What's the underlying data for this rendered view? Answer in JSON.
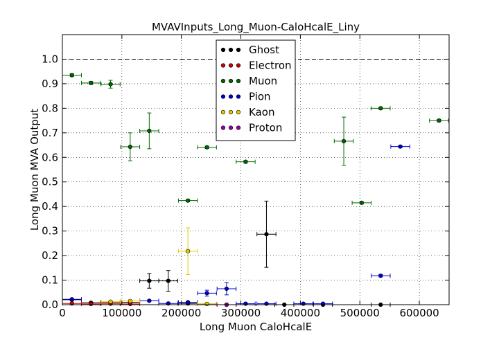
{
  "chart_data": {
    "type": "scatter",
    "title": "MVAVInputs_Long_Muon-CaloHcalE_Liny",
    "xlabel": "Long Muon CaloHcalE",
    "ylabel": "Long Muon MVA Output",
    "xlim": [
      0,
      650000
    ],
    "ylim": [
      0,
      1.1
    ],
    "x_ticks": [
      0,
      100000,
      200000,
      300000,
      400000,
      500000,
      600000
    ],
    "x_tick_labels": [
      "0",
      "100000",
      "200000",
      "300000",
      "400000",
      "500000",
      "600000"
    ],
    "y_ticks": [
      0.0,
      0.1,
      0.2,
      0.3,
      0.4,
      0.5,
      0.6,
      0.7,
      0.8,
      0.9,
      1.0
    ],
    "y_tick_labels": [
      "0.0",
      "0.1",
      "0.2",
      "0.3",
      "0.4",
      "0.5",
      "0.6",
      "0.7",
      "0.8",
      "0.9",
      "1.0"
    ],
    "reference_line_y": 1.0,
    "grid": true,
    "legend_position": "top-center",
    "series": [
      {
        "name": "Ghost",
        "color": "#000000",
        "points": [
          {
            "x": 16000,
            "y": 0.02,
            "xerr": 16000,
            "yerr": 0.003
          },
          {
            "x": 48000,
            "y": 0.008,
            "xerr": 16000,
            "yerr": 0.002
          },
          {
            "x": 81000,
            "y": 0.01,
            "xerr": 16000,
            "yerr": 0.003
          },
          {
            "x": 114000,
            "y": 0.01,
            "xerr": 16000,
            "yerr": 0.003
          },
          {
            "x": 146000,
            "y": 0.097,
            "xerr": 16000,
            "yerr": 0.03
          },
          {
            "x": 178000,
            "y": 0.097,
            "xerr": 16000,
            "yerr": 0.042
          },
          {
            "x": 211000,
            "y": 0.005,
            "xerr": 16000,
            "yerr": 0.002
          },
          {
            "x": 243000,
            "y": 0.003,
            "xerr": 16000,
            "yerr": 0.002
          },
          {
            "x": 343000,
            "y": 0.287,
            "xerr": 16000,
            "yerr": 0.135
          },
          {
            "x": 373000,
            "y": 0.0,
            "xerr": 16000,
            "yerr": 0.0
          },
          {
            "x": 438000,
            "y": 0.0,
            "xerr": 16000,
            "yerr": 0.0
          },
          {
            "x": 535000,
            "y": 0.0,
            "xerr": 16000,
            "yerr": 0.0
          }
        ]
      },
      {
        "name": "Electron",
        "color": "#cc0000",
        "points": [
          {
            "x": 16000,
            "y": 0.005,
            "xerr": 16000,
            "yerr": 0.002
          },
          {
            "x": 48000,
            "y": 0.003,
            "xerr": 16000,
            "yerr": 0.001
          },
          {
            "x": 81000,
            "y": 0.004,
            "xerr": 16000,
            "yerr": 0.001
          },
          {
            "x": 114000,
            "y": 0.003,
            "xerr": 16000,
            "yerr": 0.001
          },
          {
            "x": 276000,
            "y": 0.0,
            "xerr": 16000,
            "yerr": 0.0
          }
        ]
      },
      {
        "name": "Muon",
        "color": "#006600",
        "points": [
          {
            "x": 16000,
            "y": 0.935,
            "xerr": 16000,
            "yerr": 0.006
          },
          {
            "x": 48000,
            "y": 0.903,
            "xerr": 16000,
            "yerr": 0.006
          },
          {
            "x": 81000,
            "y": 0.898,
            "xerr": 16000,
            "yerr": 0.016
          },
          {
            "x": 114000,
            "y": 0.643,
            "xerr": 16000,
            "yerr": 0.057
          },
          {
            "x": 146000,
            "y": 0.708,
            "xerr": 16000,
            "yerr": 0.073
          },
          {
            "x": 211000,
            "y": 0.424,
            "xerr": 16000,
            "yerr": 0.005
          },
          {
            "x": 243000,
            "y": 0.641,
            "xerr": 16000,
            "yerr": 0.005
          },
          {
            "x": 308000,
            "y": 0.582,
            "xerr": 16000,
            "yerr": 0.005
          },
          {
            "x": 473000,
            "y": 0.666,
            "xerr": 16000,
            "yerr": 0.098
          },
          {
            "x": 503000,
            "y": 0.415,
            "xerr": 16000,
            "yerr": 0.005
          },
          {
            "x": 535000,
            "y": 0.8,
            "xerr": 16000,
            "yerr": 0.005
          },
          {
            "x": 633000,
            "y": 0.75,
            "xerr": 16000,
            "yerr": 0.005
          }
        ]
      },
      {
        "name": "Pion",
        "color": "#0000cc",
        "points": [
          {
            "x": 16000,
            "y": 0.022,
            "xerr": 16000,
            "yerr": 0.003
          },
          {
            "x": 146000,
            "y": 0.016,
            "xerr": 16000,
            "yerr": 0.003
          },
          {
            "x": 178000,
            "y": 0.005,
            "xerr": 16000,
            "yerr": 0.002
          },
          {
            "x": 211000,
            "y": 0.01,
            "xerr": 16000,
            "yerr": 0.003
          },
          {
            "x": 243000,
            "y": 0.047,
            "xerr": 16000,
            "yerr": 0.012
          },
          {
            "x": 276000,
            "y": 0.065,
            "xerr": 16000,
            "yerr": 0.025
          },
          {
            "x": 308000,
            "y": 0.004,
            "xerr": 16000,
            "yerr": 0.002
          },
          {
            "x": 343000,
            "y": 0.004,
            "xerr": 16000,
            "yerr": 0.002
          },
          {
            "x": 405000,
            "y": 0.004,
            "xerr": 16000,
            "yerr": 0.002
          },
          {
            "x": 438000,
            "y": 0.004,
            "xerr": 16000,
            "yerr": 0.002
          },
          {
            "x": 535000,
            "y": 0.118,
            "xerr": 16000,
            "yerr": 0.005
          },
          {
            "x": 568000,
            "y": 0.644,
            "xerr": 16000,
            "yerr": 0.005
          }
        ]
      },
      {
        "name": "Kaon",
        "color": "#e6c800",
        "points": [
          {
            "x": 81000,
            "y": 0.012,
            "xerr": 16000,
            "yerr": 0.004
          },
          {
            "x": 114000,
            "y": 0.015,
            "xerr": 16000,
            "yerr": 0.004
          },
          {
            "x": 211000,
            "y": 0.218,
            "xerr": 16000,
            "yerr": 0.095
          },
          {
            "x": 243000,
            "y": 0.003,
            "xerr": 16000,
            "yerr": 0.002
          }
        ]
      },
      {
        "name": "Proton",
        "color": "#990099",
        "points": [
          {
            "x": 276000,
            "y": 0.0,
            "xerr": 16000,
            "yerr": 0.0
          }
        ]
      }
    ]
  }
}
